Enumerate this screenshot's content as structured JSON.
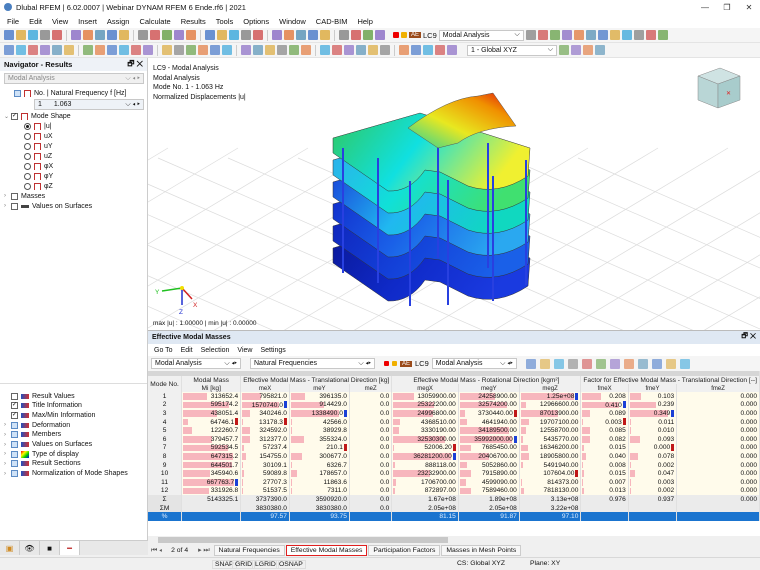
{
  "app": {
    "title": "Dlubal RFEM | 6.02.0007 | Webinar DYNAM RFEM 6 Ende.rf6 | 2021"
  },
  "menu": [
    "File",
    "Edit",
    "View",
    "Insert",
    "Assign",
    "Calculate",
    "Results",
    "Tools",
    "Options",
    "Window",
    "CAD-BIM",
    "Help"
  ],
  "toolbar": {
    "lc_badge": "AE",
    "lc_id": "LC9",
    "lc_name": "Modal Analysis",
    "cs": "1 - Global XYZ"
  },
  "navigator": {
    "title": "Navigator - Results",
    "case": "Modal Analysis",
    "freq_label": "No. | Natural Frequency f [Hz]",
    "freq_no": "1",
    "freq_val": "1.063",
    "mode_shape": "Mode Shape",
    "components": [
      "|u|",
      "uX",
      "uY",
      "uZ",
      "φX",
      "φY",
      "φZ"
    ],
    "masses": "Masses",
    "values_on_surfaces": "Values on Surfaces",
    "bottom_items": [
      {
        "label": "Result Values",
        "checked": false,
        "expand": false
      },
      {
        "label": "Title Information",
        "checked": true,
        "expand": false
      },
      {
        "label": "Max/Min Information",
        "checked": true,
        "expand": false
      },
      {
        "label": "Deformation",
        "checked": false,
        "expand": true
      },
      {
        "label": "Members",
        "checked": false,
        "expand": true
      },
      {
        "label": "Values on Surfaces",
        "checked": false,
        "expand": true
      },
      {
        "label": "Type of display",
        "checked": false,
        "expand": true
      },
      {
        "label": "Result Sections",
        "checked": false,
        "expand": true
      },
      {
        "label": "Normalization of Mode Shapes",
        "checked": false,
        "expand": true
      }
    ]
  },
  "viewport": {
    "info": [
      "LC9 - Modal Analysis",
      "Modal Analysis",
      "Mode No. 1 - 1.063 Hz",
      "Normalized Displacements |u|"
    ],
    "maxmin": "max |u| : 1.00000 | min |u| : 0.00000",
    "axes": {
      "x": "X",
      "y": "Y",
      "z": "Z"
    }
  },
  "panel": {
    "title": "Effective Modal Masses",
    "menu": [
      "Go To",
      "Edit",
      "Selection",
      "View",
      "Settings"
    ],
    "case": "Modal Analysis",
    "table_type": "Natural Frequencies",
    "lc_badge": "AE",
    "lc_id": "LC9",
    "lc_name": "Modal Analysis",
    "headers": {
      "mode": "Mode No.",
      "mass": "Modal Mass",
      "mass_sub": "Mi [kg]",
      "trans": "Effective Modal Mass - Translational Direction [kg]",
      "rot": "Effective Modal Mass - Rotational Direction [kgm²]",
      "factor": "Factor for Effective Modal Mass - Translational Direction [--]",
      "sub": [
        "meX",
        "meY",
        "meZ",
        "megX",
        "megY",
        "megZ",
        "fmeX",
        "fmeY",
        "fmeZ"
      ]
    },
    "rows": [
      [
        "1",
        "313652.4",
        "795821.0",
        "396135.0",
        "0.0",
        "13059900.00",
        "24258900.00",
        "1.25e+08",
        "0.208",
        "0.103",
        "0.000"
      ],
      [
        "2",
        "595174.2",
        "1570740.0",
        "914429.0",
        "0.0",
        "25322200.00",
        "32574200.00",
        "12966600.00",
        "0.410",
        "0.239",
        "0.000"
      ],
      [
        "3",
        "438051.4",
        "340246.0",
        "1338490.0",
        "0.0",
        "24996800.00",
        "3730440.00",
        "87013900.00",
        "0.089",
        "0.349",
        "0.000"
      ],
      [
        "4",
        "64746.1",
        "13178.3",
        "42566.0",
        "0.0",
        "4368510.00",
        "4641940.00",
        "19707100.00",
        "0.003",
        "0.011",
        "0.000"
      ],
      [
        "5",
        "122260.7",
        "324592.0",
        "38929.8",
        "0.0",
        "3330190.00",
        "34189500.00",
        "12558700.00",
        "0.085",
        "0.010",
        "0.000"
      ],
      [
        "6",
        "379457.7",
        "312377.0",
        "355324.0",
        "0.0",
        "32530300.00",
        "35992000.00",
        "5435770.00",
        "0.082",
        "0.093",
        "0.000"
      ],
      [
        "7",
        "592534.5",
        "57237.4",
        "210.1",
        "0.0",
        "52006.20",
        "7685450.00",
        "16346200.00",
        "0.015",
        "0.000",
        "0.000"
      ],
      [
        "8",
        "647315.2",
        "154755.0",
        "300677.0",
        "0.0",
        "36281200.00",
        "20406700.00",
        "18905800.00",
        "0.040",
        "0.078",
        "0.000"
      ],
      [
        "9",
        "644501.7",
        "30109.1",
        "6326.7",
        "0.0",
        "888118.00",
        "5052860.00",
        "5491940.00",
        "0.008",
        "0.002",
        "0.000"
      ],
      [
        "10",
        "345940.6",
        "59089.8",
        "178657.0",
        "0.0",
        "23232900.00",
        "7915890.00",
        "107604.00",
        "0.015",
        "0.047",
        "0.000"
      ],
      [
        "11",
        "667763.7",
        "27707.3",
        "11863.6",
        "0.0",
        "1706700.00",
        "4599090.00",
        "814373.00",
        "0.007",
        "0.003",
        "0.000"
      ],
      [
        "12",
        "331926.8",
        "51537.5",
        "7311.0",
        "0.0",
        "872897.00",
        "7589460.00",
        "7818130.00",
        "0.013",
        "0.002",
        "0.000"
      ]
    ],
    "sum_rows": [
      [
        "Σ",
        "5143325.1",
        "3737390.0",
        "3590920.0",
        "0.0",
        "1.67e+08",
        "1.89e+08",
        "3.13e+08",
        "0.976",
        "0.937",
        "0.000"
      ],
      [
        "ΣM",
        "",
        "3830380.0",
        "3830380.0",
        "0.0",
        "2.05e+08",
        "2.05e+08",
        "3.22e+08",
        "",
        "",
        ""
      ],
      [
        "%",
        "",
        "97.57",
        "93.75",
        "",
        "81.15",
        "91.87",
        "97.10",
        "",
        "",
        ""
      ]
    ],
    "pager": "2 of 4",
    "tabs": [
      "Natural Frequencies",
      "Effective Modal Masses",
      "Participation Factors",
      "Masses in Mesh Points"
    ],
    "active_tab": 1
  },
  "status": {
    "snap": "SNAP",
    "grid": "GRID",
    "lgrid": "LGRID",
    "osnap": "OSNAP",
    "cs": "CS: Global XYZ",
    "plane": "Plane: XY"
  },
  "colors": {
    "bar": "#f7b6bd",
    "min_marker": "#c01818",
    "max_marker": "#1a3fd6",
    "selected_row": "#1a74cf",
    "active_tab_border": "#e02020"
  }
}
